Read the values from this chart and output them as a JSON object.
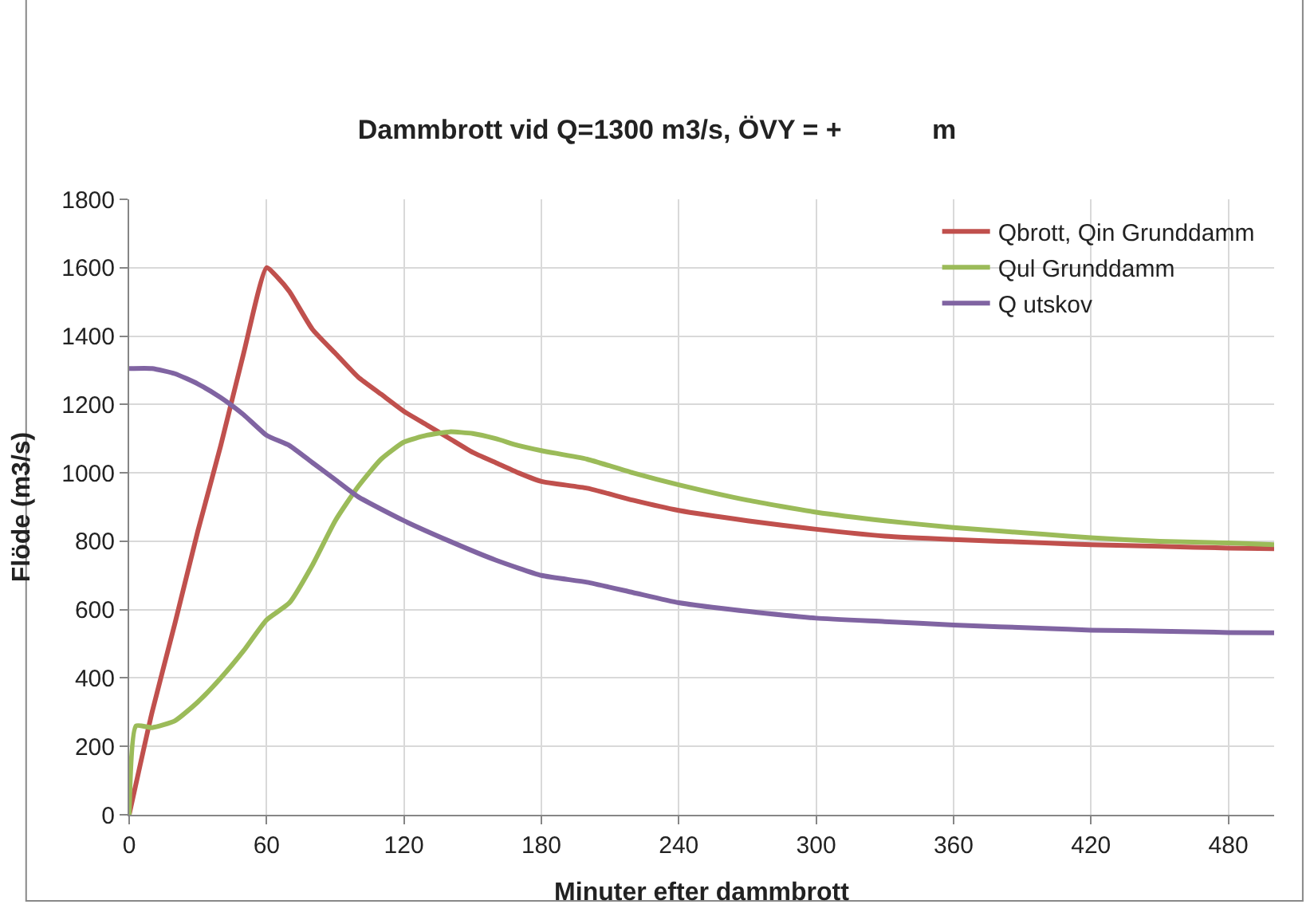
{
  "chart_data": {
    "type": "line",
    "title": "Dammbrott vid Q=1300 m3/s, ÖVY = +            m",
    "xlabel": "Minuter efter dammbrott",
    "ylabel": "Flöde (m3/s)",
    "xlim": [
      0,
      500
    ],
    "xticks": [
      0,
      60,
      120,
      180,
      240,
      300,
      360,
      420,
      480
    ],
    "ylim": [
      0,
      1800
    ],
    "yticks": [
      0,
      200,
      400,
      600,
      800,
      1000,
      1200,
      1400,
      1600,
      1800
    ],
    "grid": true,
    "legend": "top right",
    "marker": "none",
    "line_style": "solid",
    "series": [
      {
        "name": "Qbrott, Qin Grunddamm",
        "color": "#c0504d",
        "x": [
          0,
          10,
          20,
          30,
          40,
          50,
          60,
          65,
          70,
          80,
          90,
          100,
          110,
          120,
          130,
          140,
          150,
          160,
          170,
          180,
          200,
          220,
          240,
          270,
          300,
          330,
          360,
          400,
          420,
          450,
          480,
          500
        ],
        "values": [
          0,
          300,
          560,
          830,
          1080,
          1350,
          1600,
          1570,
          1530,
          1420,
          1350,
          1280,
          1230,
          1180,
          1140,
          1100,
          1060,
          1030,
          1000,
          975,
          955,
          920,
          890,
          860,
          835,
          815,
          805,
          795,
          790,
          785,
          780,
          778
        ]
      },
      {
        "name": "Qul Grunddamm",
        "color": "#9bbb59",
        "x": [
          0,
          3,
          10,
          20,
          30,
          40,
          50,
          60,
          70,
          80,
          90,
          100,
          110,
          120,
          130,
          140,
          150,
          160,
          170,
          180,
          200,
          220,
          240,
          270,
          300,
          330,
          360,
          400,
          420,
          450,
          480,
          500
        ],
        "values": [
          0,
          260,
          255,
          275,
          330,
          400,
          480,
          570,
          620,
          730,
          860,
          960,
          1040,
          1090,
          1110,
          1120,
          1115,
          1100,
          1080,
          1065,
          1040,
          1000,
          965,
          920,
          885,
          860,
          840,
          820,
          810,
          800,
          795,
          790
        ]
      },
      {
        "name": "Q utskov",
        "color": "#8064a2",
        "x": [
          0,
          10,
          20,
          30,
          40,
          50,
          60,
          70,
          80,
          90,
          100,
          120,
          140,
          160,
          180,
          200,
          220,
          240,
          270,
          300,
          330,
          360,
          400,
          420,
          450,
          480,
          500
        ],
        "values": [
          1305,
          1305,
          1290,
          1260,
          1220,
          1170,
          1110,
          1080,
          1030,
          980,
          930,
          860,
          800,
          745,
          700,
          680,
          650,
          620,
          595,
          575,
          565,
          555,
          545,
          540,
          537,
          533,
          532
        ]
      }
    ]
  }
}
